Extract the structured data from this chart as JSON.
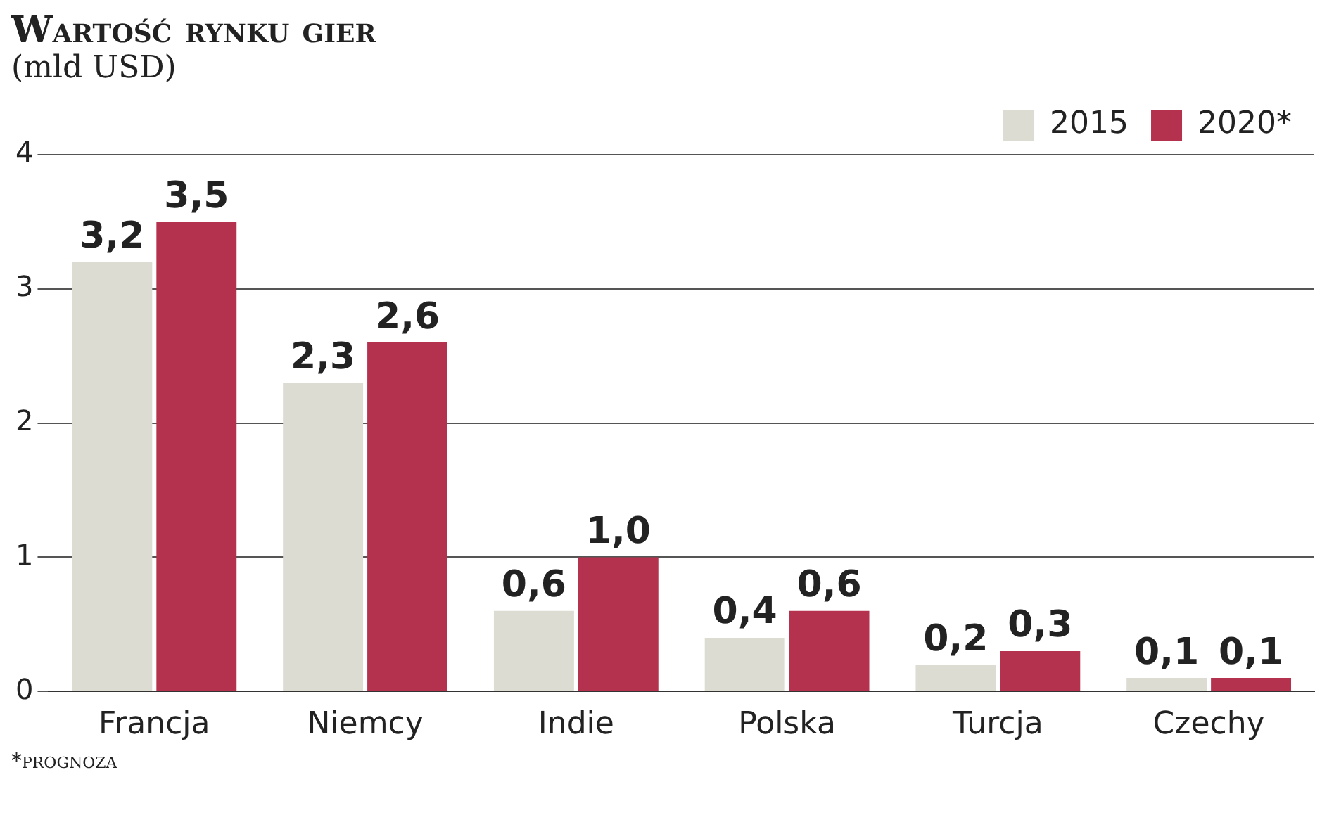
{
  "chart_data": {
    "type": "bar",
    "title": "Wartość rynku gier",
    "subtitle": "(mld USD)",
    "categories": [
      "Francja",
      "Niemcy",
      "Indie",
      "Polska",
      "Turcja",
      "Czechy"
    ],
    "series": [
      {
        "name": "2015",
        "color": "#dcdcd2",
        "values": [
          3.2,
          2.3,
          0.6,
          0.4,
          0.2,
          0.1
        ],
        "value_labels": [
          "3,2",
          "2,3",
          "0,6",
          "0,4",
          "0,2",
          "0,1"
        ]
      },
      {
        "name": "2020*",
        "color": "#b5324f",
        "values": [
          3.5,
          2.6,
          1.0,
          0.6,
          0.3,
          0.1
        ],
        "value_labels": [
          "3,5",
          "2,6",
          "1,0",
          "0,6",
          "0,3",
          "0,1"
        ]
      }
    ],
    "ylim": [
      0,
      4
    ],
    "yticks": [
      0,
      1,
      2,
      3,
      4
    ],
    "grid": "y",
    "legend": "top right",
    "annotations": [
      "*prognoza"
    ]
  }
}
